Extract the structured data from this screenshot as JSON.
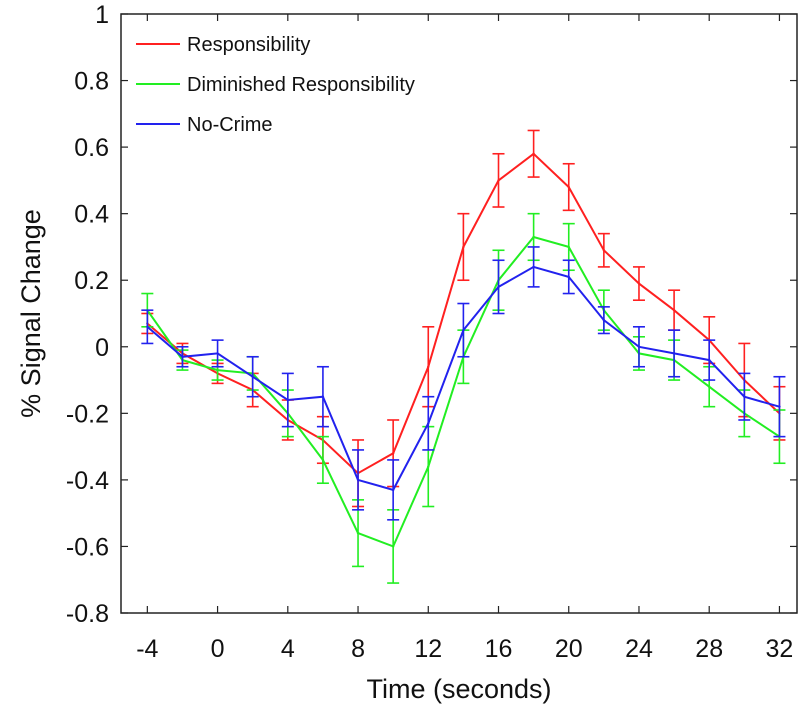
{
  "chart_data": {
    "type": "line",
    "title": "",
    "xlabel": "Time (seconds)",
    "ylabel": "% Signal Change",
    "x": [
      -4,
      -2,
      0,
      2,
      4,
      6,
      8,
      10,
      12,
      14,
      16,
      18,
      20,
      22,
      24,
      26,
      28,
      30,
      32
    ],
    "xticks": [
      -4,
      0,
      4,
      8,
      12,
      16,
      20,
      24,
      28,
      32
    ],
    "xtick_labels": [
      "-4",
      "0",
      "4",
      "8",
      "12",
      "16",
      "20",
      "24",
      "28",
      "32"
    ],
    "yticks": [
      -0.8,
      -0.6,
      -0.4,
      -0.2,
      0,
      0.2,
      0.4,
      0.6,
      0.8,
      1
    ],
    "ytick_labels": [
      "-0.8",
      "-0.6",
      "-0.4",
      "-0.2",
      "0",
      "0.2",
      "0.4",
      "0.6",
      "0.8",
      "1"
    ],
    "xlim": [
      -5.5,
      33
    ],
    "ylim": [
      -0.8,
      1
    ],
    "grid": false,
    "legend_position": "top-left",
    "series": [
      {
        "name": "Responsibility",
        "color": "#ff2020",
        "values": [
          0.07,
          -0.02,
          -0.08,
          -0.13,
          -0.22,
          -0.28,
          -0.38,
          -0.32,
          -0.06,
          0.3,
          0.5,
          0.58,
          0.48,
          0.29,
          0.19,
          0.11,
          0.02,
          -0.1,
          -0.2
        ],
        "errors": [
          0.03,
          0.03,
          0.03,
          0.05,
          0.06,
          0.07,
          0.1,
          0.1,
          0.12,
          0.1,
          0.08,
          0.07,
          0.07,
          0.05,
          0.05,
          0.06,
          0.07,
          0.11,
          0.08
        ]
      },
      {
        "name": "Diminished Responsibility",
        "color": "#22ee22",
        "values": [
          0.11,
          -0.04,
          -0.07,
          -0.08,
          -0.2,
          -0.34,
          -0.56,
          -0.6,
          -0.36,
          -0.03,
          0.2,
          0.33,
          0.3,
          0.11,
          -0.02,
          -0.04,
          -0.12,
          -0.2,
          -0.27
        ],
        "errors": [
          0.05,
          0.03,
          0.03,
          0.05,
          0.07,
          0.07,
          0.1,
          0.11,
          0.12,
          0.08,
          0.09,
          0.07,
          0.07,
          0.06,
          0.05,
          0.06,
          0.06,
          0.07,
          0.08
        ]
      },
      {
        "name": "No-Crime",
        "color": "#2222ee",
        "values": [
          0.06,
          -0.03,
          -0.02,
          -0.09,
          -0.16,
          -0.15,
          -0.4,
          -0.43,
          -0.23,
          0.05,
          0.18,
          0.24,
          0.21,
          0.08,
          0.0,
          -0.02,
          -0.04,
          -0.15,
          -0.18
        ],
        "errors": [
          0.05,
          0.03,
          0.04,
          0.06,
          0.08,
          0.09,
          0.09,
          0.09,
          0.08,
          0.08,
          0.08,
          0.06,
          0.05,
          0.04,
          0.06,
          0.07,
          0.06,
          0.07,
          0.09
        ]
      }
    ]
  }
}
